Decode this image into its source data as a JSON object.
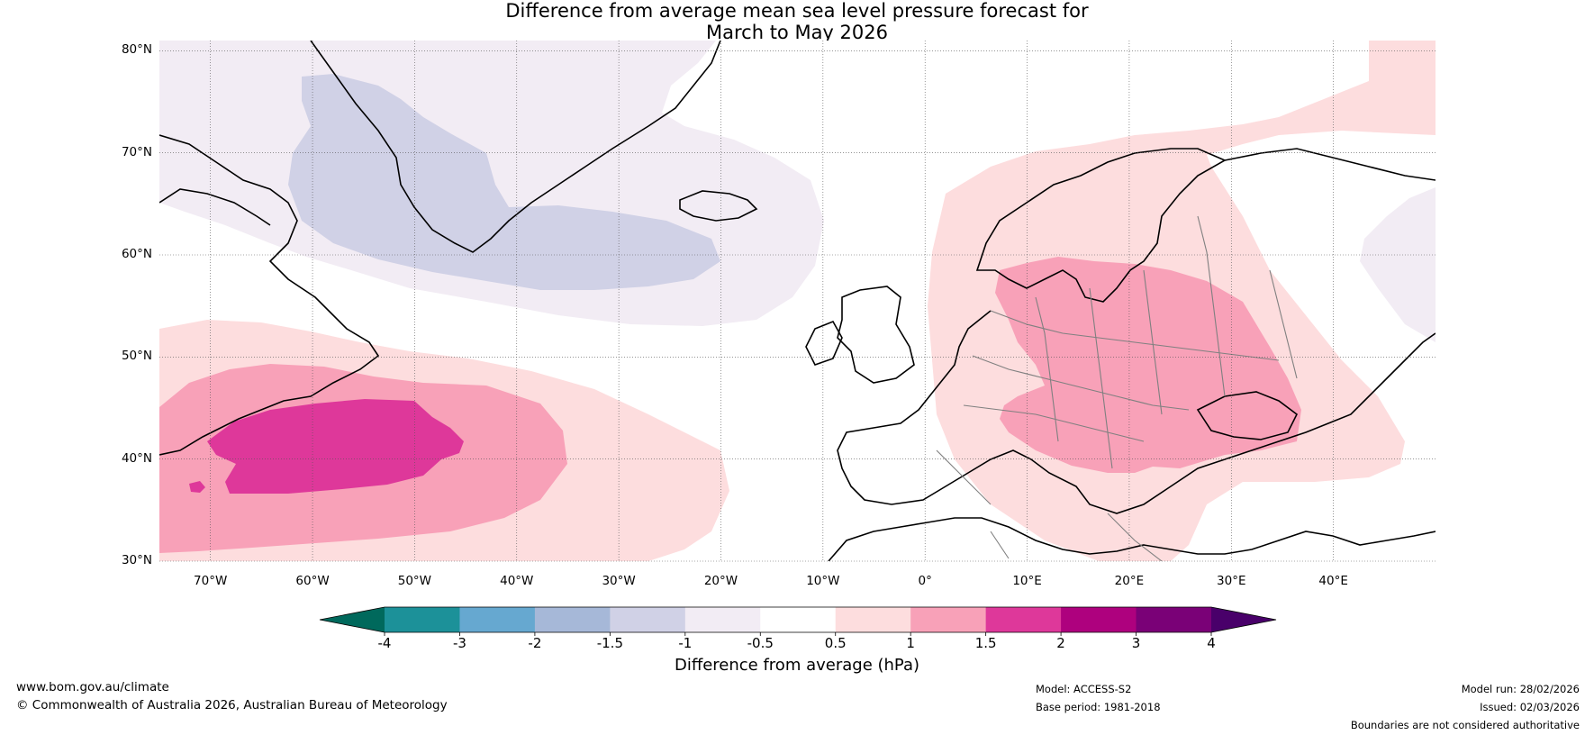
{
  "title": {
    "line1": "Difference from average mean sea level pressure forecast for",
    "line2": "March to May 2026"
  },
  "map": {
    "lat_labels": [
      "80°N",
      "70°N",
      "60°N",
      "50°N",
      "40°N",
      "30°N"
    ],
    "lat_values": [
      80,
      70,
      60,
      50,
      40,
      30
    ],
    "lon_labels": [
      "70°W",
      "60°W",
      "50°W",
      "40°W",
      "30°W",
      "20°W",
      "10°W",
      "0°",
      "10°E",
      "20°E",
      "30°E",
      "40°E"
    ],
    "lon_values": [
      -70,
      -60,
      -50,
      -40,
      -30,
      -20,
      -10,
      0,
      10,
      20,
      30,
      40
    ],
    "extent": {
      "lon_min": -75,
      "lon_max": 50,
      "lat_min": 30,
      "lat_max": 81
    }
  },
  "colorbar": {
    "ticks": [
      "-4",
      "-3",
      "-2",
      "-1.5",
      "-1",
      "-0.5",
      "0.5",
      "1",
      "1.5",
      "2",
      "3",
      "4"
    ],
    "colors": {
      "lt_-4": "#00695c",
      "-4_-3": "#1c9199",
      "-3_-2": "#66a8d0",
      "-2_-1.5": "#a6b8d8",
      "-1.5_-1": "#d0d1e6",
      "-1_-0.5": "#f2ecf4",
      "-0.5_0.5": "#ffffff",
      "0.5_1": "#fdddde",
      "1_1.5": "#f8a1b8",
      "1.5_2": "#de389a",
      "2_3": "#ae017e",
      "3_4": "#7a0177",
      "gt_4": "#49006a"
    },
    "label": "Difference from average (hPa)"
  },
  "footer": {
    "website": "www.bom.gov.au/climate",
    "copyright": "© Commonwealth of Australia 2026, Australian Bureau of Meteorology",
    "model": "Model: ACCESS-S2",
    "base_period": "Base period: 1981-2018",
    "model_run": "Model run: 28/02/2026",
    "issued": "Issued: 02/03/2026",
    "disclaimer": "Boundaries are not considered authoritative"
  }
}
